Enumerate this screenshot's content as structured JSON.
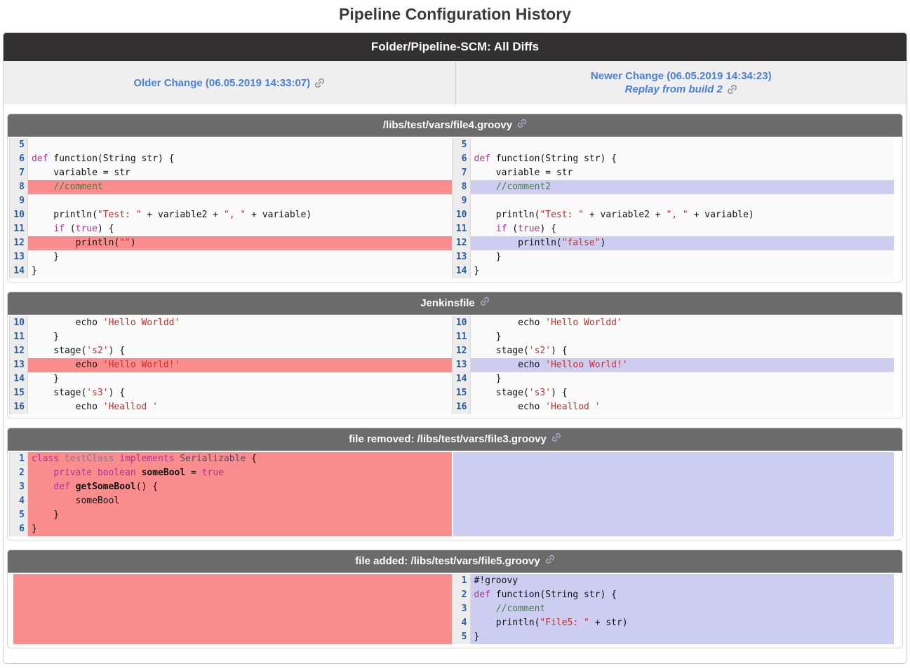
{
  "page_title": "Pipeline Configuration History",
  "header": {
    "title": "Folder/Pipeline-SCM: All Diffs"
  },
  "change_row": {
    "older": {
      "label": "Older Change (06.05.2019 14:33:07)"
    },
    "newer": {
      "label": "Newer Change (06.05.2019 14:34:23)",
      "replay_label": "Replay from build 2"
    }
  },
  "icons": {
    "link_icon": "chain-link"
  },
  "colors": {
    "removed_bg": "#f98c8c",
    "added_bg": "#cdcdf2",
    "link_blue": "#4a7ee0",
    "dark_bar_bg": "#323031",
    "section_header_bg": "#6b6b6b",
    "line_number_blue": "#2b5fa3",
    "keyword": "#b32e9b",
    "string": "#c7302b",
    "comment": "#3f7f3f"
  },
  "sections": [
    {
      "id": "file4",
      "title": "/libs/test/vars/file4.groovy",
      "left": {
        "lines": [
          {
            "n": 5,
            "hl": "",
            "segs": []
          },
          {
            "n": 6,
            "hl": "",
            "segs": [
              [
                "k",
                "def"
              ],
              [
                "p",
                " function(String str) {"
              ]
            ]
          },
          {
            "n": 7,
            "hl": "",
            "segs": [
              [
                "p",
                "    variable = str"
              ]
            ]
          },
          {
            "n": 8,
            "hl": "removed",
            "segs": [
              [
                "p",
                "    "
              ],
              [
                "c",
                "//comment"
              ]
            ]
          },
          {
            "n": 9,
            "hl": "",
            "segs": []
          },
          {
            "n": 10,
            "hl": "",
            "segs": [
              [
                "p",
                "    println("
              ],
              [
                "s",
                "\"Test: \""
              ],
              [
                "p",
                " + variable2 + "
              ],
              [
                "s",
                "\", \""
              ],
              [
                "p",
                " + variable)"
              ]
            ]
          },
          {
            "n": 11,
            "hl": "",
            "segs": [
              [
                "p",
                "    "
              ],
              [
                "k",
                "if"
              ],
              [
                "p",
                " ("
              ],
              [
                "k",
                "true"
              ],
              [
                "p",
                ") {"
              ]
            ]
          },
          {
            "n": 12,
            "hl": "removed",
            "segs": [
              [
                "p",
                "        println("
              ],
              [
                "s",
                "\"\""
              ],
              [
                "p",
                ")"
              ]
            ]
          },
          {
            "n": 13,
            "hl": "",
            "segs": [
              [
                "p",
                "    }"
              ]
            ]
          },
          {
            "n": 14,
            "hl": "",
            "segs": [
              [
                "p",
                "}"
              ]
            ]
          }
        ]
      },
      "right": {
        "lines": [
          {
            "n": 5,
            "hl": "",
            "segs": []
          },
          {
            "n": 6,
            "hl": "",
            "segs": [
              [
                "k",
                "def"
              ],
              [
                "p",
                " function(String str) {"
              ]
            ]
          },
          {
            "n": 7,
            "hl": "",
            "segs": [
              [
                "p",
                "    variable = str"
              ]
            ]
          },
          {
            "n": 8,
            "hl": "added",
            "segs": [
              [
                "p",
                "    "
              ],
              [
                "c",
                "//comment2"
              ]
            ]
          },
          {
            "n": 9,
            "hl": "",
            "segs": []
          },
          {
            "n": 10,
            "hl": "",
            "segs": [
              [
                "p",
                "    println("
              ],
              [
                "s",
                "\"Test: \""
              ],
              [
                "p",
                " + variable2 + "
              ],
              [
                "s",
                "\", \""
              ],
              [
                "p",
                " + variable)"
              ]
            ]
          },
          {
            "n": 11,
            "hl": "",
            "segs": [
              [
                "p",
                "    "
              ],
              [
                "k",
                "if"
              ],
              [
                "p",
                " ("
              ],
              [
                "k",
                "true"
              ],
              [
                "p",
                ") {"
              ]
            ]
          },
          {
            "n": 12,
            "hl": "added",
            "segs": [
              [
                "p",
                "        println("
              ],
              [
                "s",
                "\"false\""
              ],
              [
                "p",
                ")"
              ]
            ]
          },
          {
            "n": 13,
            "hl": "",
            "segs": [
              [
                "p",
                "    }"
              ]
            ]
          },
          {
            "n": 14,
            "hl": "",
            "segs": [
              [
                "p",
                "}"
              ]
            ]
          }
        ]
      }
    },
    {
      "id": "jenkinsfile",
      "title": "Jenkinsfile",
      "left": {
        "lines": [
          {
            "n": 10,
            "hl": "",
            "segs": [
              [
                "p",
                "        echo "
              ],
              [
                "s",
                "'Hello Worldd'"
              ]
            ]
          },
          {
            "n": 11,
            "hl": "",
            "segs": [
              [
                "p",
                "    }"
              ]
            ]
          },
          {
            "n": 12,
            "hl": "",
            "segs": [
              [
                "p",
                "    stage("
              ],
              [
                "s",
                "'s2'"
              ],
              [
                "p",
                ") {"
              ]
            ]
          },
          {
            "n": 13,
            "hl": "removed",
            "segs": [
              [
                "p",
                "        echo "
              ],
              [
                "s",
                "'Hello World!'"
              ]
            ]
          },
          {
            "n": 14,
            "hl": "",
            "segs": [
              [
                "p",
                "    }"
              ]
            ]
          },
          {
            "n": 15,
            "hl": "",
            "segs": [
              [
                "p",
                "    stage("
              ],
              [
                "s",
                "'s3'"
              ],
              [
                "p",
                ") {"
              ]
            ]
          },
          {
            "n": 16,
            "hl": "",
            "segs": [
              [
                "p",
                "        echo "
              ],
              [
                "s",
                "'Heallod '"
              ]
            ]
          }
        ]
      },
      "right": {
        "lines": [
          {
            "n": 10,
            "hl": "",
            "segs": [
              [
                "p",
                "        echo "
              ],
              [
                "s",
                "'Hello Worldd'"
              ]
            ]
          },
          {
            "n": 11,
            "hl": "",
            "segs": [
              [
                "p",
                "    }"
              ]
            ]
          },
          {
            "n": 12,
            "hl": "",
            "segs": [
              [
                "p",
                "    stage("
              ],
              [
                "s",
                "'s2'"
              ],
              [
                "p",
                ") {"
              ]
            ]
          },
          {
            "n": 13,
            "hl": "added",
            "segs": [
              [
                "p",
                "        echo "
              ],
              [
                "s",
                "'Helloo World!'"
              ]
            ]
          },
          {
            "n": 14,
            "hl": "",
            "segs": [
              [
                "p",
                "    }"
              ]
            ]
          },
          {
            "n": 15,
            "hl": "",
            "segs": [
              [
                "p",
                "    stage("
              ],
              [
                "s",
                "'s3'"
              ],
              [
                "p",
                ") {"
              ]
            ]
          },
          {
            "n": 16,
            "hl": "",
            "segs": [
              [
                "p",
                "        echo "
              ],
              [
                "s",
                "'Heallod '"
              ]
            ]
          }
        ]
      }
    },
    {
      "id": "file3",
      "title": "file removed: /libs/test/vars/file3.groovy",
      "left": {
        "lines": [
          {
            "n": 1,
            "hl": "removed",
            "segs": [
              [
                "k",
                "class"
              ],
              [
                "p",
                " "
              ],
              [
                "t1",
                "testClass"
              ],
              [
                "p",
                " "
              ],
              [
                "k",
                "implements"
              ],
              [
                "p",
                " "
              ],
              [
                "t2",
                "Serializable"
              ],
              [
                "p",
                " {"
              ]
            ]
          },
          {
            "n": 2,
            "hl": "removed",
            "segs": [
              [
                "p",
                "    "
              ],
              [
                "k",
                "private"
              ],
              [
                "p",
                " "
              ],
              [
                "k",
                "boolean"
              ],
              [
                "p",
                " "
              ],
              [
                "b",
                "someBool"
              ],
              [
                "p",
                " = "
              ],
              [
                "k",
                "true"
              ]
            ]
          },
          {
            "n": 3,
            "hl": "removed",
            "segs": [
              [
                "p",
                "    "
              ],
              [
                "k",
                "def"
              ],
              [
                "p",
                " "
              ],
              [
                "b",
                "getSomeBool"
              ],
              [
                "p",
                "() {"
              ]
            ]
          },
          {
            "n": 4,
            "hl": "removed",
            "segs": [
              [
                "p",
                "        someBool"
              ]
            ]
          },
          {
            "n": 5,
            "hl": "removed",
            "segs": [
              [
                "p",
                "    }"
              ]
            ]
          },
          {
            "n": 6,
            "hl": "removed",
            "segs": [
              [
                "p",
                "}"
              ]
            ]
          }
        ]
      },
      "right": {
        "fill": "added",
        "rows": 6
      }
    },
    {
      "id": "file5",
      "title": "file added: /libs/test/vars/file5.groovy",
      "left": {
        "fill": "removed",
        "rows": 5
      },
      "right": {
        "lines": [
          {
            "n": 1,
            "hl": "added",
            "segs": [
              [
                "p",
                "#!groovy"
              ]
            ]
          },
          {
            "n": 2,
            "hl": "added",
            "segs": [
              [
                "k",
                "def"
              ],
              [
                "p",
                " function(String str) {"
              ]
            ]
          },
          {
            "n": 3,
            "hl": "added",
            "segs": [
              [
                "p",
                "    "
              ],
              [
                "c",
                "//comment"
              ]
            ]
          },
          {
            "n": 4,
            "hl": "added",
            "segs": [
              [
                "p",
                "    println("
              ],
              [
                "s",
                "\"File5: \""
              ],
              [
                "p",
                " + str)"
              ]
            ]
          },
          {
            "n": 5,
            "hl": "added",
            "segs": [
              [
                "p",
                "}"
              ]
            ]
          }
        ]
      }
    }
  ]
}
